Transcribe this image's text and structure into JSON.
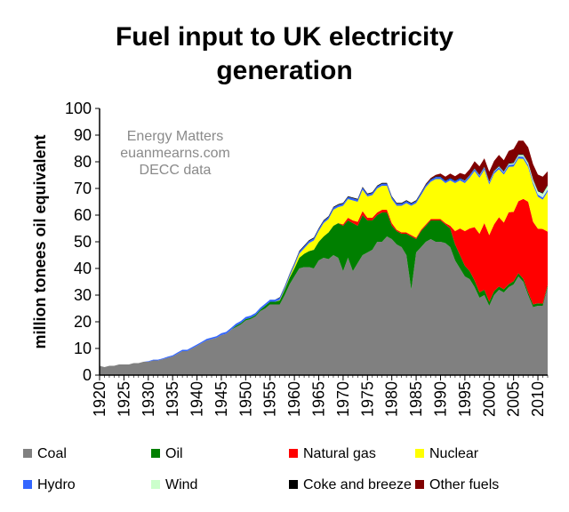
{
  "chart_data": {
    "type": "area",
    "stacked": true,
    "title_lines": [
      "Fuel input to UK electricity",
      "generation"
    ],
    "xlabel": "",
    "ylabel": "million tonees oil equivalent",
    "ylim": [
      0,
      100
    ],
    "yticks": [
      0,
      10,
      20,
      30,
      40,
      50,
      60,
      70,
      80,
      90,
      100
    ],
    "xlim": [
      1920,
      2012
    ],
    "xticks": [
      1920,
      1925,
      1930,
      1935,
      1940,
      1945,
      1950,
      1955,
      1960,
      1965,
      1970,
      1975,
      1980,
      1985,
      1990,
      1995,
      2000,
      2005,
      2010
    ],
    "grid": false,
    "legend_position": "bottom",
    "annotation_lines": [
      "Energy Matters",
      "euanmearns.com",
      "DECC data"
    ],
    "x": [
      1920,
      1921,
      1922,
      1923,
      1924,
      1925,
      1926,
      1927,
      1928,
      1929,
      1930,
      1931,
      1932,
      1933,
      1934,
      1935,
      1936,
      1937,
      1938,
      1939,
      1940,
      1941,
      1942,
      1943,
      1944,
      1945,
      1946,
      1947,
      1948,
      1949,
      1950,
      1951,
      1952,
      1953,
      1954,
      1955,
      1956,
      1957,
      1958,
      1959,
      1960,
      1961,
      1962,
      1963,
      1964,
      1965,
      1966,
      1967,
      1968,
      1969,
      1970,
      1971,
      1972,
      1973,
      1974,
      1975,
      1976,
      1977,
      1978,
      1979,
      1980,
      1981,
      1982,
      1983,
      1984,
      1985,
      1986,
      1987,
      1988,
      1989,
      1990,
      1991,
      1992,
      1993,
      1994,
      1995,
      1996,
      1997,
      1998,
      1999,
      2000,
      2001,
      2002,
      2003,
      2004,
      2005,
      2006,
      2007,
      2008,
      2009,
      2010,
      2011,
      2012
    ],
    "series": [
      {
        "name": "Coal",
        "color": "#808080",
        "values": [
          3.5,
          3,
          3.5,
          3.5,
          4,
          4,
          4,
          4.5,
          4.5,
          5,
          5,
          5.5,
          5.5,
          6,
          6.5,
          7,
          8,
          9,
          9,
          10,
          11,
          12,
          13,
          13.5,
          14,
          15,
          15.5,
          17,
          18,
          19,
          20.5,
          21,
          22,
          24,
          25,
          26.5,
          26.5,
          26.5,
          30,
          34,
          37,
          40,
          40.5,
          40.5,
          40,
          43,
          44,
          43.5,
          45,
          44,
          39,
          44,
          39,
          42,
          45,
          46,
          47,
          50,
          50,
          52,
          51,
          49,
          48,
          45,
          32,
          46,
          48,
          50,
          51,
          50,
          50,
          49.5,
          48,
          43,
          40,
          37,
          36,
          33,
          29,
          30,
          26,
          30,
          32,
          31,
          33,
          34,
          37,
          35,
          30,
          25.5,
          26,
          26,
          33
        ]
      },
      {
        "name": "Oil",
        "color": "#007f00",
        "values": [
          0,
          0,
          0,
          0,
          0,
          0,
          0,
          0,
          0,
          0,
          0,
          0,
          0,
          0,
          0,
          0,
          0,
          0,
          0,
          0,
          0,
          0,
          0,
          0,
          0,
          0,
          0,
          0,
          0.5,
          0.5,
          0.5,
          0.5,
          0.5,
          0.5,
          1,
          1,
          1,
          1.5,
          2,
          2.5,
          3,
          4,
          5,
          6,
          7,
          7,
          8,
          10,
          11,
          13,
          17,
          14,
          18,
          14,
          15,
          12,
          11,
          10,
          11,
          9,
          5,
          5,
          5,
          8,
          20,
          5,
          6,
          6,
          7,
          8,
          8,
          7,
          7,
          6,
          5,
          4,
          3,
          2.5,
          2,
          2,
          1.5,
          1.5,
          1.2,
          1.2,
          1.1,
          1.2,
          1.2,
          1.1,
          1,
          1,
          0.9,
          0.8,
          0.8
        ]
      },
      {
        "name": "Natural gas",
        "color": "#ff0000",
        "values": [
          0,
          0,
          0,
          0,
          0,
          0,
          0,
          0,
          0,
          0,
          0,
          0,
          0,
          0,
          0,
          0,
          0,
          0,
          0,
          0,
          0,
          0,
          0,
          0,
          0,
          0,
          0,
          0,
          0,
          0,
          0,
          0,
          0,
          0,
          0,
          0,
          0,
          0,
          0,
          0,
          0,
          0,
          0,
          0,
          0,
          0,
          0,
          0,
          0,
          0,
          0.5,
          1,
          1,
          1.5,
          1.5,
          1,
          1,
          1,
          1,
          1,
          1,
          0.5,
          0.5,
          0.5,
          0.5,
          0.5,
          0.5,
          0.5,
          0.5,
          0.5,
          0.5,
          0.5,
          1,
          5,
          10,
          13,
          16,
          20,
          22,
          25,
          25,
          25,
          26,
          25,
          27,
          26,
          27,
          30,
          34,
          31,
          28,
          28,
          20
        ]
      },
      {
        "name": "Nuclear",
        "color": "#ffff00",
        "values": [
          0,
          0,
          0,
          0,
          0,
          0,
          0,
          0,
          0,
          0,
          0,
          0,
          0,
          0,
          0,
          0,
          0,
          0,
          0,
          0,
          0,
          0,
          0,
          0,
          0,
          0,
          0,
          0,
          0,
          0,
          0,
          0,
          0,
          0,
          0,
          0,
          0,
          0.2,
          0.3,
          0.5,
          1,
          1.5,
          2,
          3,
          3.5,
          4,
          5,
          5,
          6,
          6,
          7,
          7,
          7.5,
          7.5,
          8,
          8,
          8.5,
          9,
          9,
          9,
          9,
          9,
          10,
          11,
          11,
          13,
          13,
          14,
          14,
          15,
          15,
          15,
          17,
          18,
          18,
          18,
          19,
          21,
          21,
          20,
          19,
          19,
          18,
          18,
          17,
          17,
          16,
          15,
          13,
          14,
          12,
          11,
          15
        ]
      },
      {
        "name": "Hydro",
        "color": "#3366ff",
        "values": [
          0,
          0,
          0,
          0,
          0,
          0,
          0,
          0,
          0,
          0,
          0.2,
          0.3,
          0.3,
          0.3,
          0.4,
          0.4,
          0.5,
          0.5,
          0.5,
          0.5,
          0.5,
          0.5,
          0.6,
          0.6,
          0.6,
          0.7,
          0.7,
          0.7,
          0.8,
          0.8,
          0.8,
          0.8,
          0.8,
          0.8,
          0.8,
          0.8,
          0.8,
          0.8,
          0.8,
          0.8,
          0.8,
          0.8,
          0.8,
          0.8,
          0.8,
          0.8,
          0.8,
          0.8,
          0.8,
          0.8,
          0.8,
          0.8,
          0.8,
          0.8,
          0.8,
          0.8,
          0.8,
          0.8,
          0.8,
          0.8,
          0.8,
          0.8,
          0.8,
          0.8,
          0.8,
          0.8,
          0.8,
          0.8,
          0.8,
          0.8,
          0.8,
          0.8,
          0.8,
          0.8,
          0.8,
          0.8,
          0.8,
          0.8,
          0.8,
          0.8,
          0.8,
          0.8,
          0.8,
          0.8,
          0.8,
          0.8,
          0.8,
          0.8,
          0.8,
          0.8,
          0.8,
          0.8,
          0.8
        ]
      },
      {
        "name": "Wind",
        "color": "#ccffcc",
        "values": [
          0,
          0,
          0,
          0,
          0,
          0,
          0,
          0,
          0,
          0,
          0,
          0,
          0,
          0,
          0,
          0,
          0,
          0,
          0,
          0,
          0,
          0,
          0,
          0,
          0,
          0,
          0,
          0,
          0,
          0,
          0,
          0,
          0,
          0,
          0,
          0,
          0,
          0,
          0,
          0,
          0,
          0,
          0,
          0,
          0,
          0,
          0,
          0,
          0,
          0,
          0,
          0,
          0,
          0,
          0,
          0,
          0,
          0,
          0,
          0,
          0,
          0,
          0,
          0,
          0,
          0,
          0,
          0,
          0,
          0,
          0,
          0,
          0,
          0,
          0,
          0.1,
          0.1,
          0.1,
          0.2,
          0.2,
          0.2,
          0.2,
          0.3,
          0.3,
          0.4,
          0.5,
          0.6,
          0.7,
          0.8,
          1,
          1.2,
          1.5,
          1.5
        ]
      },
      {
        "name": "Coke and breeze",
        "color": "#000000",
        "values": [
          0,
          0,
          0,
          0,
          0,
          0,
          0,
          0,
          0,
          0,
          0,
          0,
          0,
          0,
          0,
          0,
          0,
          0,
          0,
          0,
          0,
          0,
          0,
          0,
          0,
          0,
          0,
          0,
          0,
          0,
          0,
          0,
          0,
          0,
          0,
          0,
          0,
          0.2,
          0.2,
          0.2,
          0.2,
          0.3,
          0.3,
          0.3,
          0.3,
          0.3,
          0.3,
          0.3,
          0.3,
          0.3,
          0.3,
          0.3,
          0.3,
          0.3,
          0.3,
          0.3,
          0.3,
          0.3,
          0.3,
          0.3,
          0.3,
          0.3,
          0.3,
          0.3,
          0.3,
          0.3,
          0.3,
          0.3,
          0.3,
          0.3,
          0.3,
          0.3,
          0.3,
          0.3,
          0.3,
          0.3,
          0.3,
          0.3,
          0.3,
          0.3,
          0.3,
          0.3,
          0.3,
          0.3,
          0.3,
          0.3,
          0.3,
          0.3,
          0.3,
          0.3,
          0.3,
          0.3,
          0.3
        ]
      },
      {
        "name": "Other fuels",
        "color": "#800000",
        "values": [
          0,
          0,
          0,
          0,
          0,
          0,
          0,
          0,
          0,
          0,
          0,
          0,
          0,
          0,
          0,
          0,
          0,
          0,
          0,
          0,
          0,
          0,
          0,
          0,
          0,
          0,
          0,
          0,
          0,
          0,
          0,
          0,
          0,
          0,
          0,
          0,
          0,
          0,
          0,
          0,
          0,
          0,
          0,
          0,
          0,
          0,
          0,
          0,
          0,
          0,
          0,
          0,
          0,
          0,
          0,
          0,
          0,
          0,
          0,
          0,
          0,
          0,
          0,
          0,
          0,
          0,
          0,
          0.2,
          0.3,
          0.5,
          1,
          1.3,
          1.5,
          1.5,
          1.7,
          2,
          2,
          2.5,
          3,
          3,
          3.5,
          3.5,
          4,
          4,
          4.5,
          5,
          5,
          5,
          5.5,
          5.5,
          6,
          6,
          5
        ]
      }
    ]
  }
}
